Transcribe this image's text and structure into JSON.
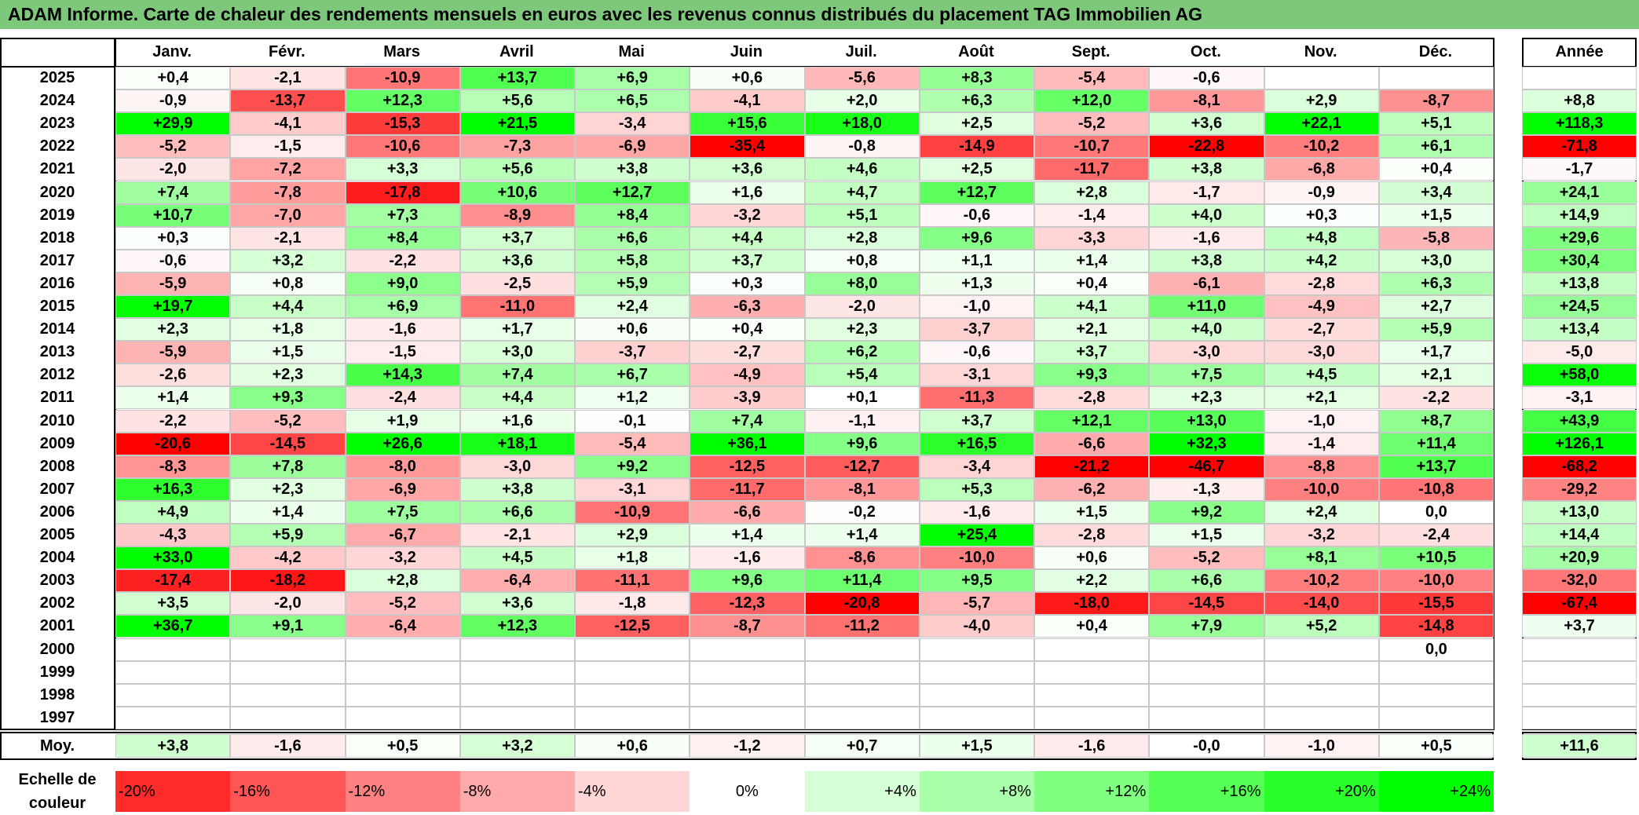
{
  "title": "ADAM Informe. Carte de chaleur des rendements mensuels en euros avec les revenus connus distribués du placement TAG Immobilien AG",
  "chart_data": {
    "type": "heatmap",
    "title": "ADAM Informe. Carte de chaleur des rendements mensuels en euros avec les revenus connus distribués du placement TAG Immobilien AG",
    "columns": [
      "Janv.",
      "Févr.",
      "Mars",
      "Avril",
      "Mai",
      "Juin",
      "Juil.",
      "Août",
      "Sept.",
      "Oct.",
      "Nov.",
      "Déc."
    ],
    "annual_header": "Année",
    "rows": [
      {
        "year": "2025",
        "values": [
          "+0,4",
          "-2,1",
          "-10,9",
          "+13,7",
          "+6,9",
          "+0,6",
          "-5,6",
          "+8,3",
          "-5,4",
          "-0,6",
          "",
          ""
        ],
        "annual": ""
      },
      {
        "year": "2024",
        "values": [
          "-0,9",
          "-13,7",
          "+12,3",
          "+5,6",
          "+6,5",
          "-4,1",
          "+2,0",
          "+6,3",
          "+12,0",
          "-8,1",
          "+2,9",
          "-8,7"
        ],
        "annual": "+8,8"
      },
      {
        "year": "2023",
        "values": [
          "+29,9",
          "-4,1",
          "-15,3",
          "+21,5",
          "-3,4",
          "+15,6",
          "+18,0",
          "+2,5",
          "-5,2",
          "+3,6",
          "+22,1",
          "+5,1"
        ],
        "annual": "+118,3"
      },
      {
        "year": "2022",
        "values": [
          "-5,2",
          "-1,5",
          "-10,6",
          "-7,3",
          "-6,9",
          "-35,4",
          "-0,8",
          "-14,9",
          "-10,7",
          "-22,8",
          "-10,2",
          "+6,1"
        ],
        "annual": "-71,8"
      },
      {
        "year": "2021",
        "values": [
          "-2,0",
          "-7,2",
          "+3,3",
          "+5,6",
          "+3,8",
          "+3,6",
          "+4,6",
          "+2,5",
          "-11,7",
          "+3,8",
          "-6,8",
          "+0,4"
        ],
        "annual": "-1,7"
      },
      {
        "year": "2020",
        "values": [
          "+7,4",
          "-7,8",
          "-17,8",
          "+10,6",
          "+12,7",
          "+1,6",
          "+4,7",
          "+12,7",
          "+2,8",
          "-1,7",
          "-0,9",
          "+3,4"
        ],
        "annual": "+24,1"
      },
      {
        "year": "2019",
        "values": [
          "+10,7",
          "-7,0",
          "+7,3",
          "-8,9",
          "+8,4",
          "-3,2",
          "+5,1",
          "-0,6",
          "-1,4",
          "+4,0",
          "+0,3",
          "+1,5"
        ],
        "annual": "+14,9"
      },
      {
        "year": "2018",
        "values": [
          "+0,3",
          "-2,1",
          "+8,4",
          "+3,7",
          "+6,6",
          "+4,4",
          "+2,8",
          "+9,6",
          "-3,3",
          "-1,6",
          "+4,8",
          "-5,8"
        ],
        "annual": "+29,6"
      },
      {
        "year": "2017",
        "values": [
          "-0,6",
          "+3,2",
          "-2,2",
          "+3,6",
          "+5,8",
          "+3,7",
          "+0,8",
          "+1,1",
          "+1,4",
          "+3,8",
          "+4,2",
          "+3,0"
        ],
        "annual": "+30,4"
      },
      {
        "year": "2016",
        "values": [
          "-5,9",
          "+0,8",
          "+9,0",
          "-2,5",
          "+5,9",
          "+0,3",
          "+8,0",
          "+1,3",
          "+0,4",
          "-6,1",
          "-2,8",
          "+6,3"
        ],
        "annual": "+13,8"
      },
      {
        "year": "2015",
        "values": [
          "+19,7",
          "+4,4",
          "+6,9",
          "-11,0",
          "+2,4",
          "-6,3",
          "-2,0",
          "-1,0",
          "+4,1",
          "+11,0",
          "-4,9",
          "+2,7"
        ],
        "annual": "+24,5"
      },
      {
        "year": "2014",
        "values": [
          "+2,3",
          "+1,8",
          "-1,6",
          "+1,7",
          "+0,6",
          "+0,4",
          "+2,3",
          "-3,7",
          "+2,1",
          "+4,0",
          "-2,7",
          "+5,9"
        ],
        "annual": "+13,4"
      },
      {
        "year": "2013",
        "values": [
          "-5,9",
          "+1,5",
          "-1,5",
          "+3,0",
          "-3,7",
          "-2,7",
          "+6,2",
          "-0,6",
          "+3,7",
          "-3,0",
          "-3,0",
          "+1,7"
        ],
        "annual": "-5,0"
      },
      {
        "year": "2012",
        "values": [
          "-2,6",
          "+2,3",
          "+14,3",
          "+7,4",
          "+6,7",
          "-4,9",
          "+5,4",
          "-3,1",
          "+9,3",
          "+7,5",
          "+4,5",
          "+2,1"
        ],
        "annual": "+58,0"
      },
      {
        "year": "2011",
        "values": [
          "+1,4",
          "+9,3",
          "-2,4",
          "+4,4",
          "+1,2",
          "-3,9",
          "+0,1",
          "-11,3",
          "-2,8",
          "+2,3",
          "+2,1",
          "-2,2"
        ],
        "annual": "-3,1"
      },
      {
        "year": "2010",
        "values": [
          "-2,2",
          "-5,2",
          "+1,9",
          "+1,6",
          "-0,1",
          "+7,4",
          "-1,1",
          "+3,7",
          "+12,1",
          "+13,0",
          "-1,0",
          "+8,7"
        ],
        "annual": "+43,9"
      },
      {
        "year": "2009",
        "values": [
          "-20,6",
          "-14,5",
          "+26,6",
          "+18,1",
          "-5,4",
          "+36,1",
          "+9,6",
          "+16,5",
          "-6,6",
          "+32,3",
          "-1,4",
          "+11,4"
        ],
        "annual": "+126,1"
      },
      {
        "year": "2008",
        "values": [
          "-8,3",
          "+7,8",
          "-8,0",
          "-3,0",
          "+9,2",
          "-12,5",
          "-12,7",
          "-3,4",
          "-21,2",
          "-46,7",
          "-8,8",
          "+13,7"
        ],
        "annual": "-68,2"
      },
      {
        "year": "2007",
        "values": [
          "+16,3",
          "+2,3",
          "-6,9",
          "+3,8",
          "-3,1",
          "-11,7",
          "-8,1",
          "+5,3",
          "-6,2",
          "-1,3",
          "-10,0",
          "-10,8"
        ],
        "annual": "-29,2"
      },
      {
        "year": "2006",
        "values": [
          "+4,9",
          "+1,4",
          "+7,5",
          "+6,6",
          "-10,9",
          "-6,6",
          "-0,2",
          "-1,6",
          "+1,5",
          "+9,2",
          "+2,4",
          "0,0"
        ],
        "annual": "+13,0"
      },
      {
        "year": "2005",
        "values": [
          "-4,3",
          "+5,9",
          "-6,7",
          "-2,1",
          "+2,9",
          "+1,4",
          "+1,4",
          "+25,4",
          "-2,8",
          "+1,5",
          "-3,2",
          "-2,4"
        ],
        "annual": "+14,4"
      },
      {
        "year": "2004",
        "values": [
          "+33,0",
          "-4,2",
          "-3,2",
          "+4,5",
          "+1,8",
          "-1,6",
          "-8,6",
          "-10,0",
          "+0,6",
          "-5,2",
          "+8,1",
          "+10,5"
        ],
        "annual": "+20,9"
      },
      {
        "year": "2003",
        "values": [
          "-17,4",
          "-18,2",
          "+2,8",
          "-6,4",
          "-11,1",
          "+9,6",
          "+11,4",
          "+9,5",
          "+2,2",
          "+6,6",
          "-10,2",
          "-10,0"
        ],
        "annual": "-32,0"
      },
      {
        "year": "2002",
        "values": [
          "+3,5",
          "-2,0",
          "-5,2",
          "+3,6",
          "-1,8",
          "-12,3",
          "-20,8",
          "-5,7",
          "-18,0",
          "-14,5",
          "-14,0",
          "-15,5"
        ],
        "annual": "-67,4"
      },
      {
        "year": "2001",
        "values": [
          "+36,7",
          "+9,1",
          "-6,4",
          "+12,3",
          "-12,5",
          "-8,7",
          "-11,2",
          "-4,0",
          "+0,4",
          "+7,9",
          "+5,2",
          "-14,8"
        ],
        "annual": "+3,7"
      },
      {
        "year": "2000",
        "values": [
          "",
          "",
          "",
          "",
          "",
          "",
          "",
          "",
          "",
          "",
          "",
          "0,0"
        ],
        "annual": ""
      },
      {
        "year": "1999",
        "values": [
          "",
          "",
          "",
          "",
          "",
          "",
          "",
          "",
          "",
          "",
          "",
          ""
        ],
        "annual": ""
      },
      {
        "year": "1998",
        "values": [
          "",
          "",
          "",
          "",
          "",
          "",
          "",
          "",
          "",
          "",
          "",
          ""
        ],
        "annual": ""
      },
      {
        "year": "1997",
        "values": [
          "",
          "",
          "",
          "",
          "",
          "",
          "",
          "",
          "",
          "",
          "",
          ""
        ],
        "annual": ""
      }
    ],
    "average": {
      "label": "Moy.",
      "values": [
        "+3,8",
        "-1,6",
        "+0,5",
        "+3,2",
        "+0,6",
        "-1,2",
        "+0,7",
        "+1,5",
        "-1,6",
        "-0,0",
        "-1,0",
        "+0,5"
      ],
      "annual": "+11,6"
    },
    "scale": {
      "label_line1": "Echelle de",
      "label_line2": "couleur",
      "steps": [
        {
          "label": "-20%",
          "value": -20
        },
        {
          "label": "-16%",
          "value": -16
        },
        {
          "label": "-12%",
          "value": -12
        },
        {
          "label": "-8%",
          "value": -8
        },
        {
          "label": "-4%",
          "value": -4
        },
        {
          "label": "0%",
          "value": 0
        },
        {
          "label": "+4%",
          "value": 4
        },
        {
          "label": "+8%",
          "value": 8
        },
        {
          "label": "+12%",
          "value": 12
        },
        {
          "label": "+16%",
          "value": 16
        },
        {
          "label": "+20%",
          "value": 20
        },
        {
          "label": "+24%",
          "value": 24
        }
      ]
    },
    "colors": {
      "negative_max": "#ff0000",
      "positive_max": "#00ff00",
      "neutral": "#ffffff",
      "title_bar": "#7dc87a"
    }
  }
}
